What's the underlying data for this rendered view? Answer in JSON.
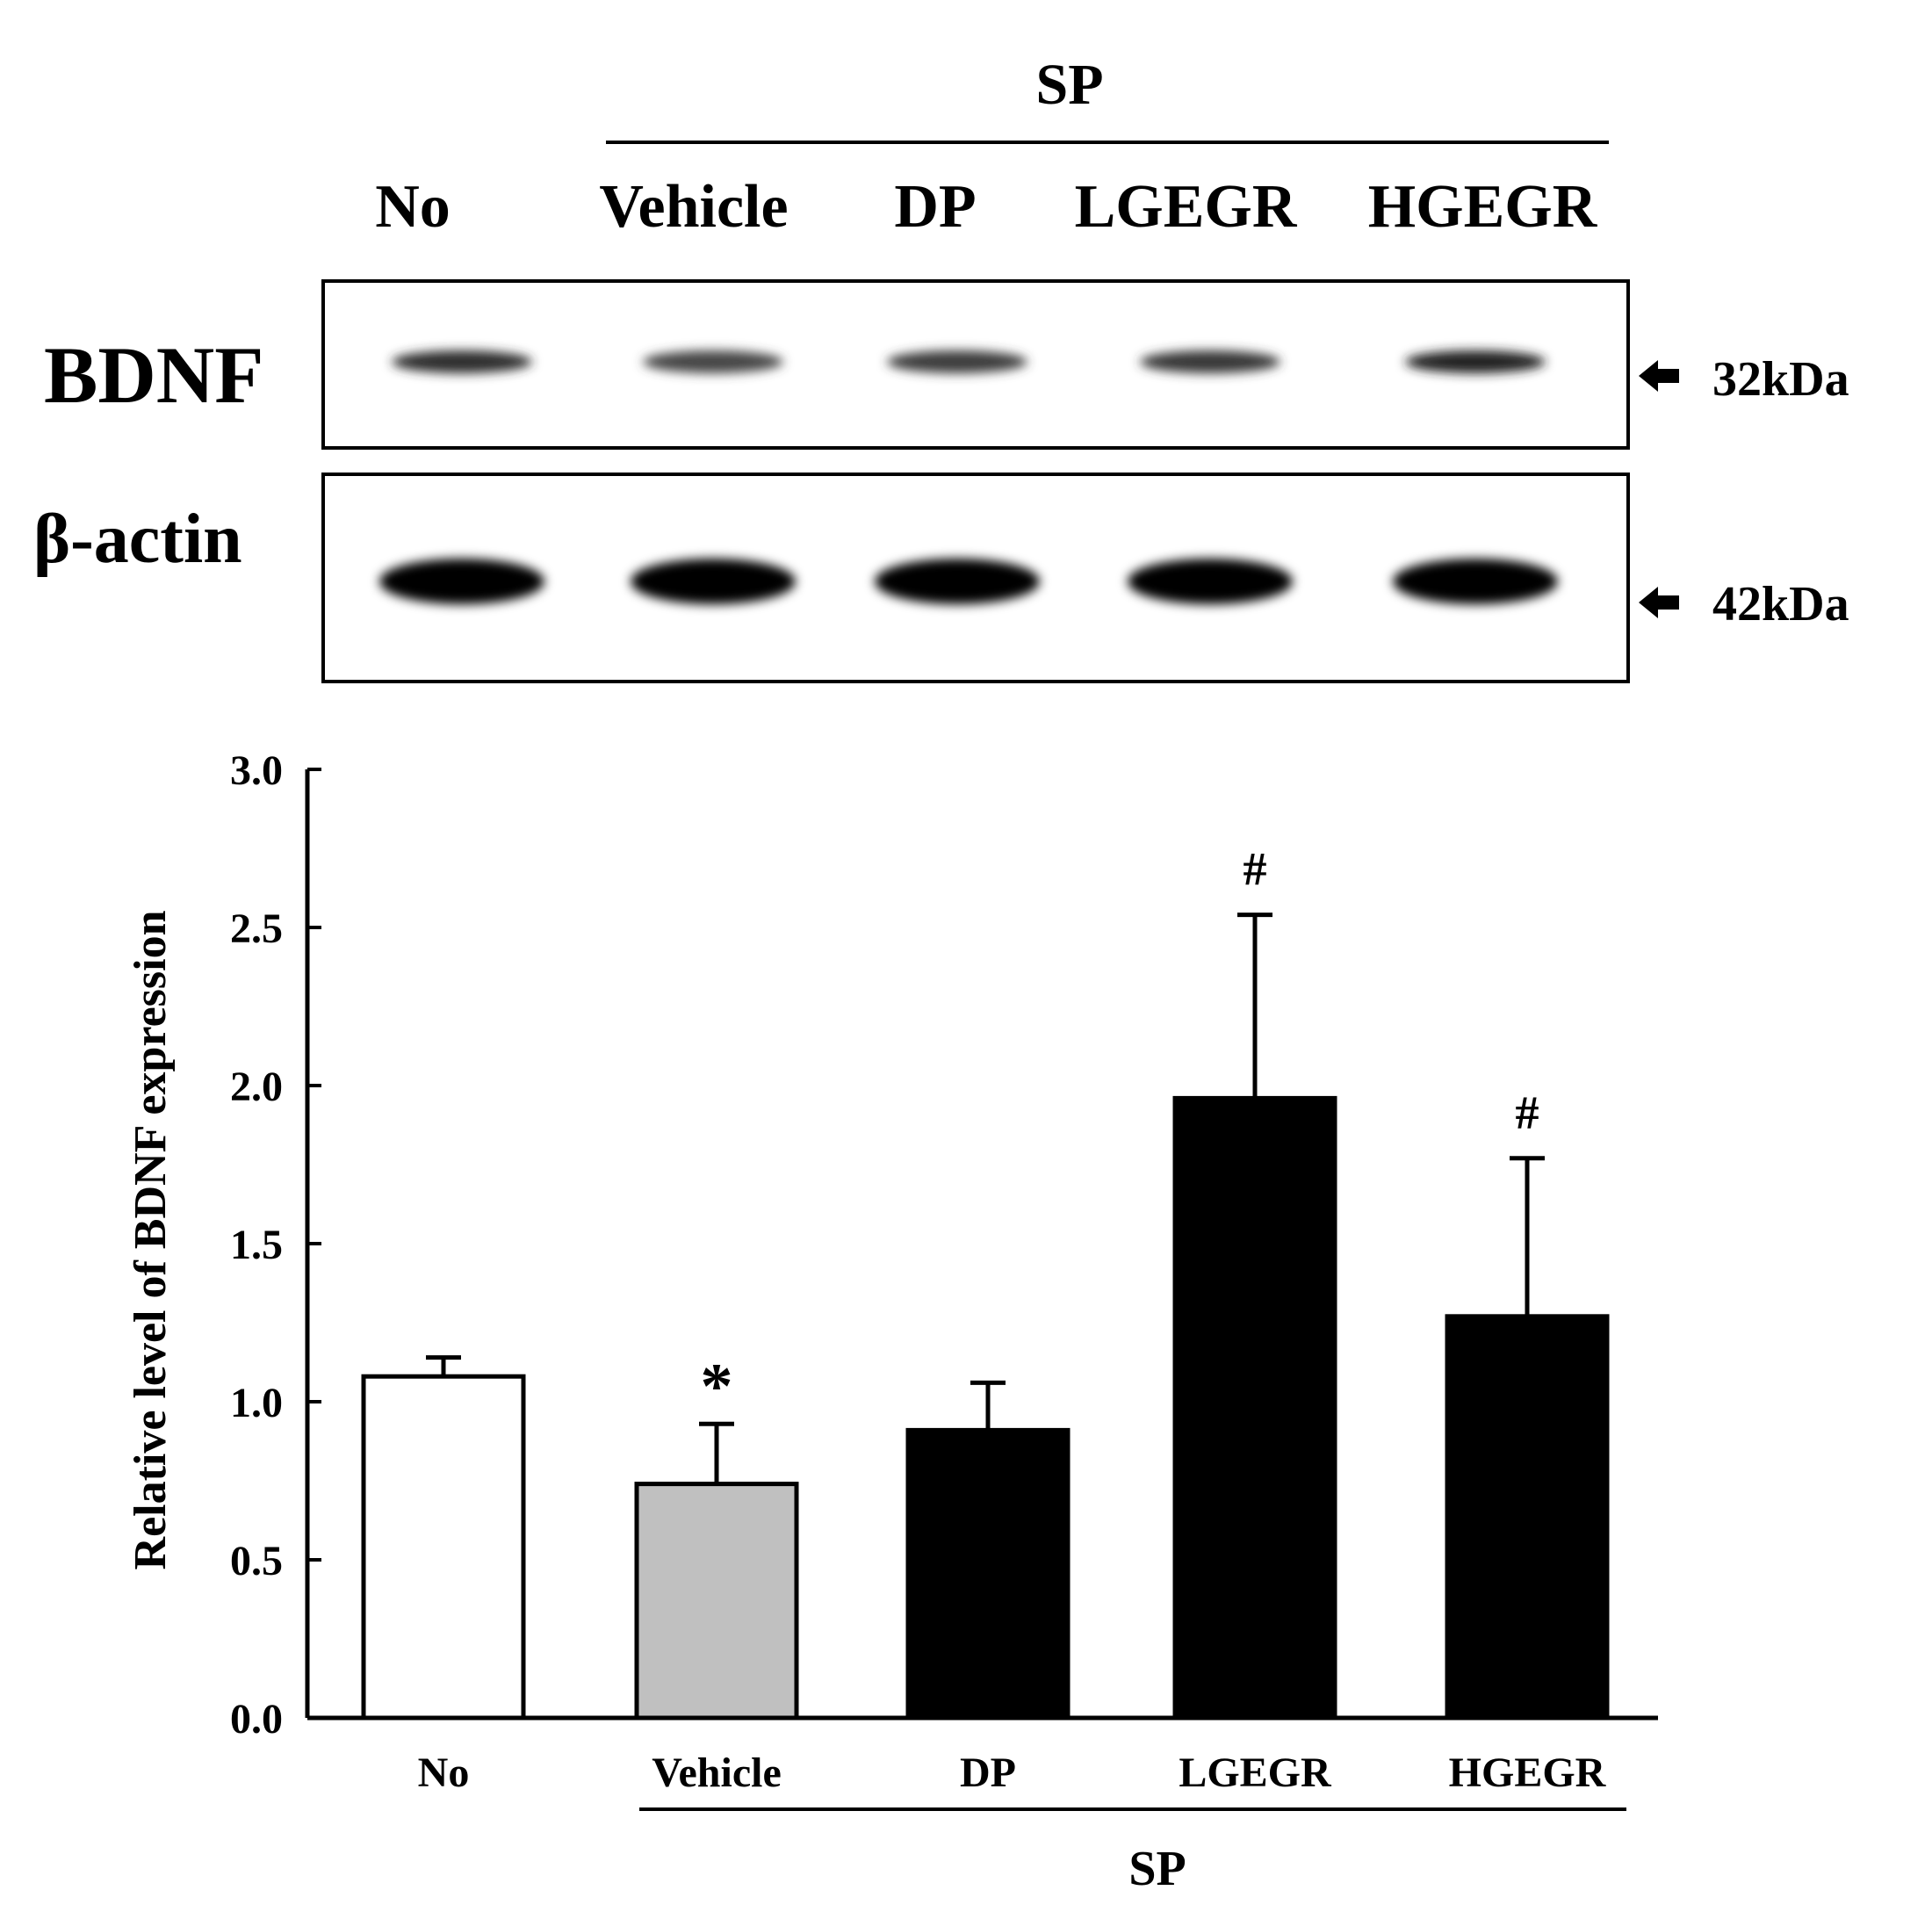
{
  "blot": {
    "group_label": "SP",
    "lanes": [
      "No",
      "Vehicle",
      "DP",
      "LGEGR",
      "HGEGR"
    ],
    "rows": [
      {
        "protein": "BDNF",
        "marker": "32kDa",
        "intensity": [
          0.82,
          0.72,
          0.76,
          0.78,
          0.86
        ]
      },
      {
        "protein": "β-actin",
        "marker": "42kDa",
        "intensity": [
          1.0,
          1.0,
          1.0,
          1.0,
          1.0
        ]
      }
    ]
  },
  "chart_data": {
    "type": "bar",
    "ylabel": "Relative level of BDNF expression",
    "ylim": [
      0,
      3.0
    ],
    "yticks": [
      "0.0",
      "0.5",
      "1.0",
      "1.5",
      "2.0",
      "2.5",
      "3.0"
    ],
    "categories": [
      "No",
      "Vehicle",
      "DP",
      "LGEGR",
      "HGEGR"
    ],
    "values": [
      1.08,
      0.74,
      0.91,
      1.96,
      1.27
    ],
    "errors": [
      0.06,
      0.19,
      0.15,
      0.58,
      0.5
    ],
    "annotations": [
      "",
      "*",
      "",
      "#",
      "#"
    ],
    "bar_colors": [
      "#ffffff",
      "#c0c0c0",
      "#000000",
      "#000000",
      "#000000"
    ],
    "group_label": "SP",
    "grid": false
  }
}
